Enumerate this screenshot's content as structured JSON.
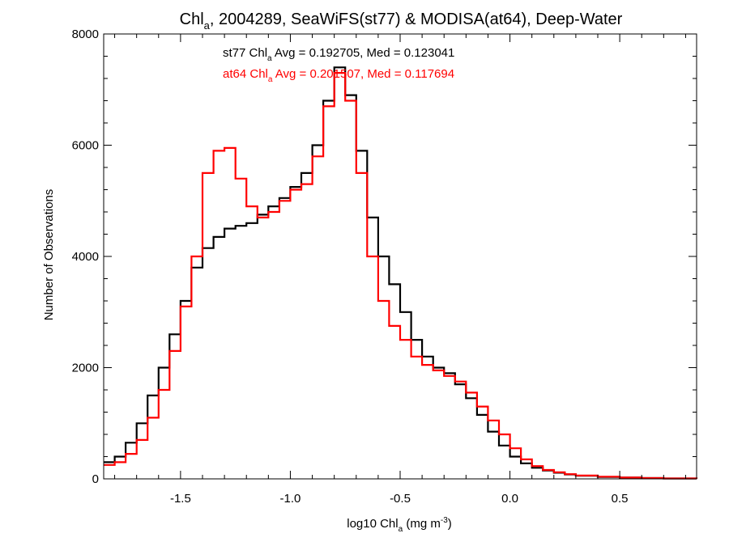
{
  "chart_data": {
    "type": "line",
    "title": {
      "pre": "Chl",
      "sub": "a",
      "post": ", 2004289, SeaWiFS(st77) & MODISA(at64), Deep-Water"
    },
    "xlabel": {
      "pre": "log10 Chl",
      "sub": "a",
      "mid": " (mg m",
      "sup": "-3",
      "post": ")"
    },
    "ylabel": "Number of Observations",
    "xlim": [
      -1.85,
      0.85
    ],
    "ylim": [
      0,
      8000
    ],
    "x_ticks": [
      -1.5,
      -1.0,
      -0.5,
      0.0,
      0.5
    ],
    "x_tick_labels": [
      "-1.5",
      "-1.0",
      "-0.5",
      "0.0",
      "0.5"
    ],
    "y_ticks": [
      0,
      2000,
      4000,
      6000,
      8000
    ],
    "y_tick_labels": [
      "0",
      "2000",
      "4000",
      "6000",
      "8000"
    ],
    "annotations": [
      {
        "series": "st77",
        "color": "#000000",
        "pre": "st77 Chl",
        "sub": "a",
        "post": " Avg = 0.192705, Med = 0.123041"
      },
      {
        "series": "at64",
        "color": "#ff0000",
        "pre": "at64 Chl",
        "sub": "a",
        "post": " Avg = 0.201507, Med = 0.117694"
      }
    ],
    "series": [
      {
        "color": "#000000",
        "x": [
          -1.85,
          -1.8,
          -1.75,
          -1.7,
          -1.65,
          -1.6,
          -1.55,
          -1.5,
          -1.45,
          -1.4,
          -1.35,
          -1.3,
          -1.25,
          -1.2,
          -1.15,
          -1.1,
          -1.05,
          -1.0,
          -0.95,
          -0.9,
          -0.85,
          -0.8,
          -0.75,
          -0.7,
          -0.65,
          -0.6,
          -0.55,
          -0.5,
          -0.45,
          -0.4,
          -0.35,
          -0.3,
          -0.25,
          -0.2,
          -0.15,
          -0.1,
          -0.05,
          0.0,
          0.05,
          0.1,
          0.15,
          0.2,
          0.25,
          0.3,
          0.4,
          0.5,
          0.6,
          0.7,
          0.85
        ],
        "values": [
          300,
          400,
          650,
          1000,
          1500,
          2000,
          2600,
          3200,
          3800,
          4150,
          4350,
          4500,
          4550,
          4600,
          4750,
          4900,
          5050,
          5250,
          5500,
          6000,
          6800,
          7400,
          6900,
          5900,
          4700,
          4000,
          3500,
          3000,
          2500,
          2200,
          2000,
          1900,
          1700,
          1450,
          1150,
          850,
          600,
          400,
          280,
          200,
          150,
          110,
          80,
          55,
          35,
          25,
          15,
          8,
          5
        ]
      },
      {
        "color": "#ff0000",
        "x": [
          -1.85,
          -1.8,
          -1.75,
          -1.7,
          -1.65,
          -1.6,
          -1.55,
          -1.5,
          -1.45,
          -1.4,
          -1.35,
          -1.3,
          -1.25,
          -1.2,
          -1.15,
          -1.1,
          -1.05,
          -1.0,
          -0.95,
          -0.9,
          -0.85,
          -0.8,
          -0.75,
          -0.7,
          -0.65,
          -0.6,
          -0.55,
          -0.5,
          -0.45,
          -0.4,
          -0.35,
          -0.3,
          -0.25,
          -0.2,
          -0.15,
          -0.1,
          -0.05,
          0.0,
          0.05,
          0.1,
          0.15,
          0.2,
          0.25,
          0.3,
          0.4,
          0.5,
          0.6,
          0.7,
          0.85
        ],
        "values": [
          250,
          300,
          450,
          700,
          1100,
          1600,
          2300,
          3100,
          4000,
          5500,
          5900,
          5950,
          5400,
          4900,
          4700,
          4800,
          5000,
          5200,
          5300,
          5800,
          6700,
          7300,
          6800,
          5500,
          4000,
          3200,
          2750,
          2500,
          2200,
          2050,
          1950,
          1850,
          1750,
          1550,
          1300,
          1050,
          800,
          550,
          350,
          230,
          160,
          120,
          85,
          60,
          40,
          25,
          15,
          8,
          5
        ]
      }
    ]
  }
}
